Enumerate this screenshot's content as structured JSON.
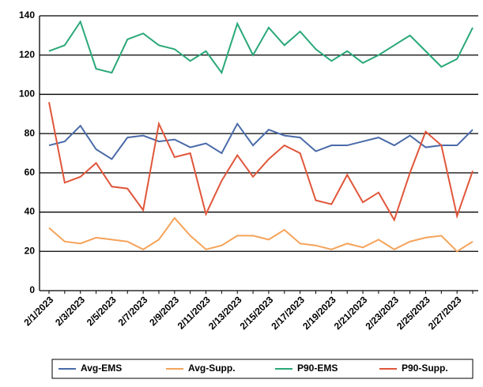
{
  "chart_data": {
    "type": "line",
    "categories": [
      "2/1/2023",
      null,
      "2/3/2023",
      null,
      "2/5/2023",
      null,
      "2/7/2023",
      null,
      "2/9/2023",
      null,
      "2/11/2023",
      null,
      "2/13/2023",
      null,
      "2/15/2023",
      null,
      "2/17/2023",
      null,
      "2/19/2023",
      null,
      "2/21/2023",
      null,
      "2/23/2023",
      null,
      "2/25/2023",
      null,
      "2/27/2023",
      null
    ],
    "series": [
      {
        "name": "Avg-EMS",
        "color": "#4a6aa8",
        "values": [
          74,
          76,
          84,
          72,
          67,
          78,
          79,
          76,
          77,
          73,
          75,
          70,
          85,
          74,
          82,
          79,
          78,
          71,
          74,
          74,
          76,
          78,
          74,
          79,
          73,
          74,
          74,
          82
        ]
      },
      {
        "name": "Avg-Supp.",
        "color": "#f5a35a",
        "values": [
          32,
          25,
          24,
          27,
          26,
          25,
          21,
          26,
          37,
          28,
          21,
          23,
          28,
          28,
          26,
          31,
          24,
          23,
          21,
          24,
          22,
          26,
          21,
          25,
          27,
          28,
          20,
          25
        ]
      },
      {
        "name": "P90-EMS",
        "color": "#2aa878",
        "values": [
          122,
          125,
          137,
          113,
          111,
          128,
          131,
          125,
          123,
          117,
          122,
          111,
          136,
          120,
          134,
          125,
          132,
          123,
          117,
          122,
          116,
          120,
          125,
          130,
          122,
          114,
          118,
          134
        ]
      },
      {
        "name": "P90-Supp.",
        "color": "#e0563a",
        "values": [
          96,
          55,
          58,
          65,
          53,
          52,
          41,
          85,
          68,
          70,
          39,
          56,
          69,
          58,
          67,
          74,
          70,
          46,
          44,
          59,
          45,
          50,
          36,
          60,
          81,
          74,
          38,
          61
        ]
      }
    ],
    "ylim": [
      0,
      140
    ],
    "yticks": [
      0,
      20,
      40,
      60,
      80,
      100,
      120,
      140
    ],
    "grid": true
  }
}
